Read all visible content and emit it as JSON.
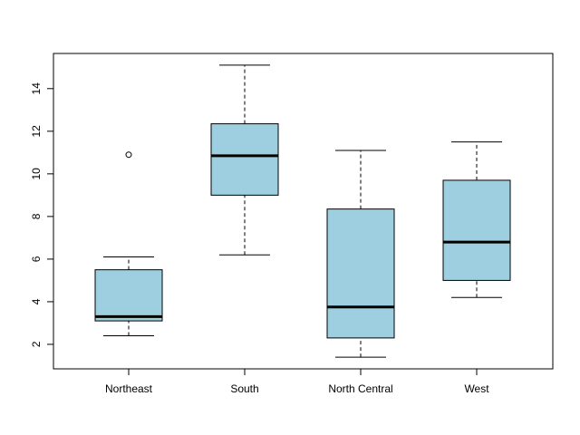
{
  "chart_data": {
    "type": "boxplot",
    "title": "",
    "xlabel": "",
    "ylabel": "",
    "categories": [
      "Northeast",
      "South",
      "North Central",
      "West"
    ],
    "boxes": [
      {
        "category": "Northeast",
        "whisker_low": 2.4,
        "q1": 3.1,
        "median": 3.3,
        "q3": 5.5,
        "whisker_high": 6.1,
        "outliers": [
          10.9
        ]
      },
      {
        "category": "South",
        "whisker_low": 6.2,
        "q1": 9.0,
        "median": 10.85,
        "q3": 12.35,
        "whisker_high": 15.1,
        "outliers": []
      },
      {
        "category": "North Central",
        "whisker_low": 1.4,
        "q1": 2.3,
        "median": 3.75,
        "q3": 8.35,
        "whisker_high": 11.1,
        "outliers": []
      },
      {
        "category": "West",
        "whisker_low": 4.2,
        "q1": 5.0,
        "median": 6.8,
        "q3": 9.7,
        "whisker_high": 11.5,
        "outliers": []
      }
    ],
    "y_ticks": [
      2,
      4,
      6,
      8,
      10,
      12,
      14
    ],
    "ylim": [
      0.85,
      15.65
    ],
    "grid": false,
    "legend": "none",
    "colors": {
      "box_fill": "#9ecfe0",
      "median": "#000000",
      "outline": "#000000"
    }
  }
}
